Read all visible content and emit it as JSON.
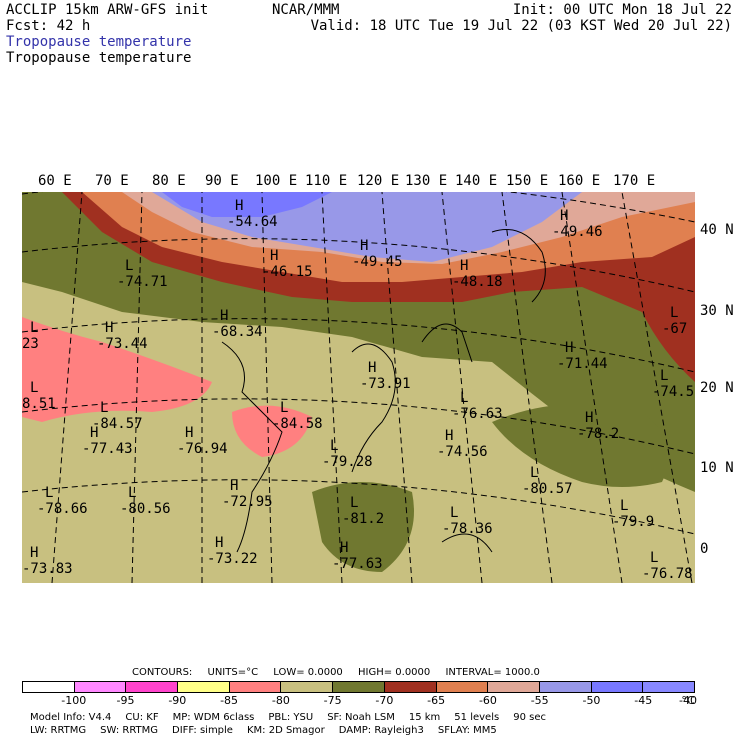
{
  "header": {
    "left_line1": "ACCLIP 15km ARW-GFS init",
    "left_line2": "Fcst:   42 h",
    "center": "NCAR/MMM",
    "right_line1": "Init: 00 UTC Mon 18 Jul 22",
    "right_line2": "Valid: 18 UTC Tue 19 Jul 22 (03 KST Wed 20 Jul 22)",
    "subtitle_1": "Tropopause temperature",
    "subtitle_2": "Tropopause temperature"
  },
  "map": {
    "lon_labels": [
      "60 E",
      "70 E",
      "80 E",
      "90 E",
      "100 E",
      "110 E",
      "120 E",
      "130 E",
      "140 E",
      "150 E",
      "160 E",
      "170 E"
    ],
    "lat_labels": [
      "40 N",
      "30 N",
      "20 N",
      "10 N",
      "0"
    ],
    "extrema": [
      {
        "type": "H",
        "value": "-54.64"
      },
      {
        "type": "H",
        "value": "-49.45"
      },
      {
        "type": "H",
        "value": "-49.46"
      },
      {
        "type": "H",
        "value": "-46.15"
      },
      {
        "type": "H",
        "value": "-48.18"
      },
      {
        "type": "L",
        "value": "-74.71"
      },
      {
        "type": "L",
        "value": "-67"
      },
      {
        "type": "H",
        "value": "-68.34"
      },
      {
        "type": "H",
        "value": "-73.44"
      },
      {
        "type": "L",
        "value": "23"
      },
      {
        "type": "H",
        "value": "-71.44"
      },
      {
        "type": "L",
        "value": "-74.5"
      },
      {
        "type": "L",
        "value": "8.51"
      },
      {
        "type": "L",
        "value": "-84.57"
      },
      {
        "type": "L",
        "value": "-84.58"
      },
      {
        "type": "H",
        "value": "-73.91"
      },
      {
        "type": "L",
        "value": "-76.63"
      },
      {
        "type": "H",
        "value": "-78.2"
      },
      {
        "type": "H",
        "value": "-77.43"
      },
      {
        "type": "H",
        "value": "-76.94"
      },
      {
        "type": "L",
        "value": "-79.28"
      },
      {
        "type": "H",
        "value": "-74.56"
      },
      {
        "type": "L",
        "value": "-80.57"
      },
      {
        "type": "L",
        "value": "-78.66"
      },
      {
        "type": "L",
        "value": "-80.56"
      },
      {
        "type": "H",
        "value": "-72.95"
      },
      {
        "type": "L",
        "value": "-81.2"
      },
      {
        "type": "L",
        "value": "-78.36"
      },
      {
        "type": "L",
        "value": "-79.9"
      },
      {
        "type": "H",
        "value": "-73.83"
      },
      {
        "type": "H",
        "value": "-73.22"
      },
      {
        "type": "H",
        "value": "-77.63"
      },
      {
        "type": "L",
        "value": "-76.78"
      }
    ]
  },
  "legend": {
    "contours_label": "CONTOURS:",
    "units": "UNITS=°C",
    "low": "LOW=   0.0000",
    "high": "HIGH=   0.0000",
    "interval": "INTERVAL=    1000.0",
    "ticks": [
      "-100",
      "-95",
      "-90",
      "-85",
      "-80",
      "-75",
      "-70",
      "-65",
      "-60",
      "-55",
      "-50",
      "-45",
      "-40",
      "°C"
    ],
    "colors": [
      "#ffffff",
      "#ff88ff",
      "#ff44cc",
      "#ffff88",
      "#ff8080",
      "#c8c080",
      "#707830",
      "#a03020",
      "#e08050",
      "#e0a898",
      "#9898e8",
      "#7878ff",
      "#8888ff"
    ]
  },
  "footer": {
    "line1": [
      "Model Info: V4.4",
      "CU: KF",
      "MP: WDM 6class",
      "PBL: YSU",
      "SF: Noah LSM",
      "15 km",
      "51 levels",
      "90 sec"
    ],
    "line2": [
      "LW: RRTMG",
      "SW: RRTMG",
      "DIFF: simple",
      "KM: 2D Smagor",
      "DAMP: Rayleigh3",
      "SFLAY: MM5"
    ]
  }
}
